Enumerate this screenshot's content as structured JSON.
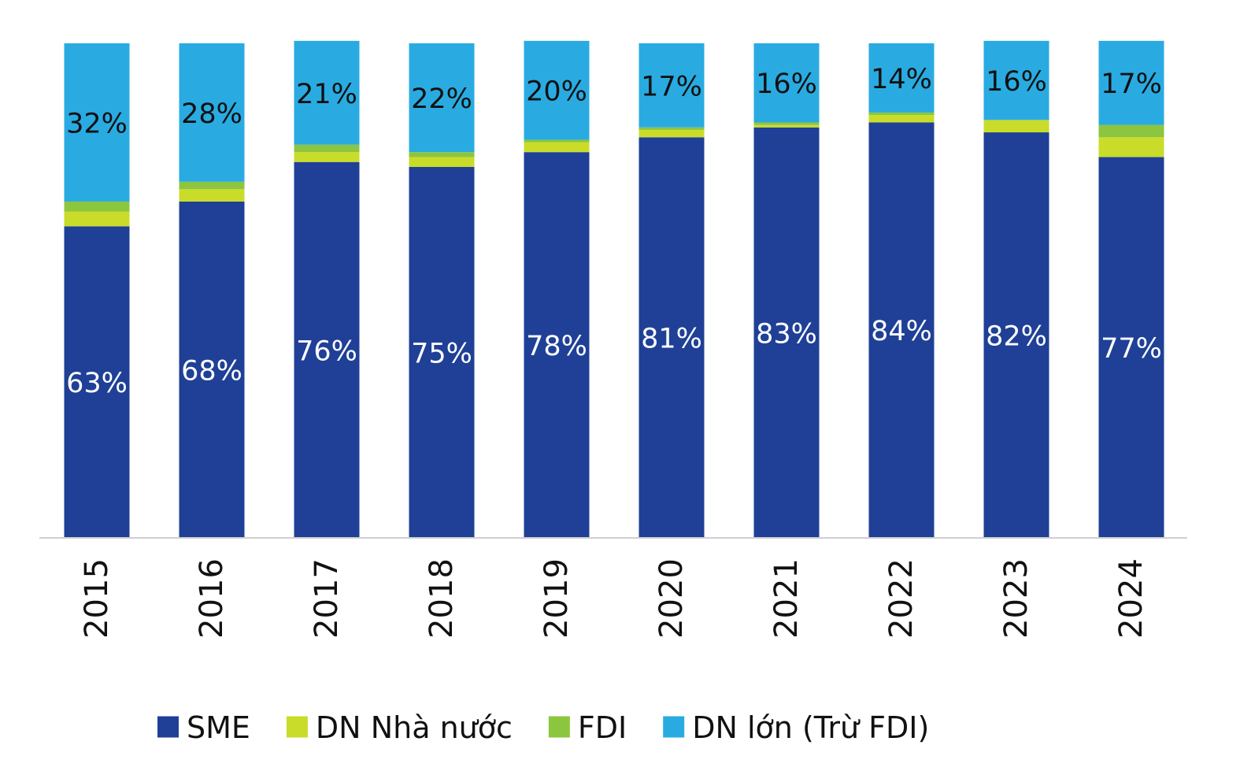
{
  "chart_data": {
    "type": "bar",
    "stacked": true,
    "percent_stacked": true,
    "categories": [
      "2015",
      "2016",
      "2017",
      "2018",
      "2019",
      "2020",
      "2021",
      "2022",
      "2023",
      "2024"
    ],
    "series": [
      {
        "name": "SME",
        "color": "#1f4096",
        "values": [
          63,
          68,
          76,
          75,
          78,
          81,
          83,
          84,
          82,
          77
        ],
        "labels": [
          "63%",
          "68%",
          "76%",
          "75%",
          "78%",
          "81%",
          "83%",
          "84%",
          "82%",
          "77%"
        ]
      },
      {
        "name": "DN Nhà nước",
        "color": "#c9dc2a",
        "values": [
          3,
          2.5,
          2,
          2,
          2,
          1.5,
          0.5,
          1.5,
          2.5,
          4
        ],
        "labels": []
      },
      {
        "name": "FDI",
        "color": "#8cc63f",
        "values": [
          2,
          1.5,
          1.5,
          1,
          0.5,
          0.5,
          0.5,
          0.5,
          0,
          2.5
        ],
        "labels": []
      },
      {
        "name": "DN lớn (Trừ FDI)",
        "color": "#29abe2",
        "values": [
          32,
          28,
          21,
          22,
          20,
          17,
          16,
          14,
          16,
          17
        ],
        "labels": [
          "32%",
          "28%",
          "21%",
          "22%",
          "20%",
          "17%",
          "16%",
          "14%",
          "16%",
          "17%"
        ]
      }
    ],
    "xlabel": "",
    "ylabel": "",
    "ylim": [
      0,
      100
    ],
    "grid": false,
    "legend_position": "bottom",
    "x_tick_rotation": "vertical"
  }
}
